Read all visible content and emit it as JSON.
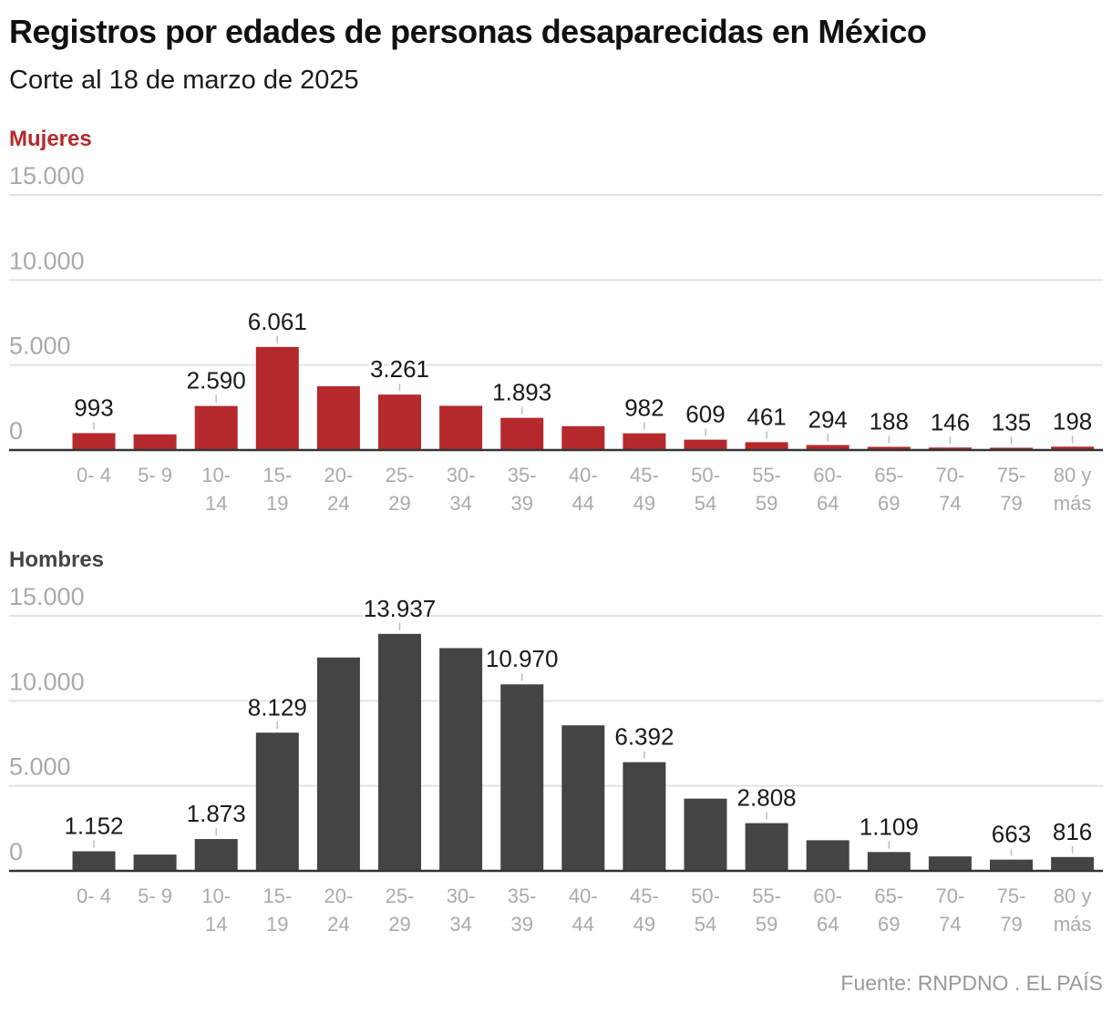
{
  "chart_data": {
    "type": "bar",
    "title": "Registros por edades de personas desaparecidas en México",
    "subtitle": "Corte al 18 de marzo de 2025",
    "source": "Fuente: RNPDNO . EL PAÍS",
    "categories": [
      [
        "0- 4",
        ""
      ],
      [
        "5- 9",
        ""
      ],
      [
        "10-",
        "14"
      ],
      [
        "15-",
        "19"
      ],
      [
        "20-",
        "24"
      ],
      [
        "25-",
        "29"
      ],
      [
        "30-",
        "34"
      ],
      [
        "35-",
        "39"
      ],
      [
        "40-",
        "44"
      ],
      [
        "45-",
        "49"
      ],
      [
        "50-",
        "54"
      ],
      [
        "55-",
        "59"
      ],
      [
        "60-",
        "64"
      ],
      [
        "65-",
        "69"
      ],
      [
        "70-",
        "74"
      ],
      [
        "75-",
        "79"
      ],
      [
        "80 y",
        "más"
      ]
    ],
    "ylim": [
      0,
      15000
    ],
    "yticks": [
      {
        "value": 0,
        "label": "0"
      },
      {
        "value": 5000,
        "label": "5.000"
      },
      {
        "value": 10000,
        "label": "10.000"
      },
      {
        "value": 15000,
        "label": "15.000"
      }
    ],
    "grid": true,
    "series": [
      {
        "name": "Mujeres",
        "color": "#b5292c",
        "values": [
          993,
          920,
          2590,
          6061,
          3750,
          3261,
          2600,
          1893,
          1400,
          982,
          609,
          461,
          294,
          188,
          146,
          135,
          198
        ],
        "labels": [
          "993",
          "",
          "2.590",
          "6.061",
          "",
          "3.261",
          "",
          "1.893",
          "",
          "982",
          "609",
          "461",
          "294",
          "188",
          "146",
          "135",
          "198"
        ]
      },
      {
        "name": "Hombres",
        "color": "#444444",
        "values": [
          1152,
          960,
          1873,
          8129,
          12550,
          13937,
          13100,
          10970,
          8560,
          6392,
          4250,
          2808,
          1800,
          1109,
          850,
          663,
          816
        ],
        "labels": [
          "1.152",
          "",
          "1.873",
          "8.129",
          "",
          "13.937",
          "",
          "10.970",
          "",
          "6.392",
          "",
          "2.808",
          "",
          "1.109",
          "",
          "663",
          "816"
        ]
      }
    ]
  },
  "colors": {
    "title": "#111111",
    "axis_text": "#aaaaaa",
    "gridline": "#e3e3e3",
    "baseline": "#333333",
    "label_text": "#1a1a1a",
    "tick_mark": "#bbbbbb"
  }
}
